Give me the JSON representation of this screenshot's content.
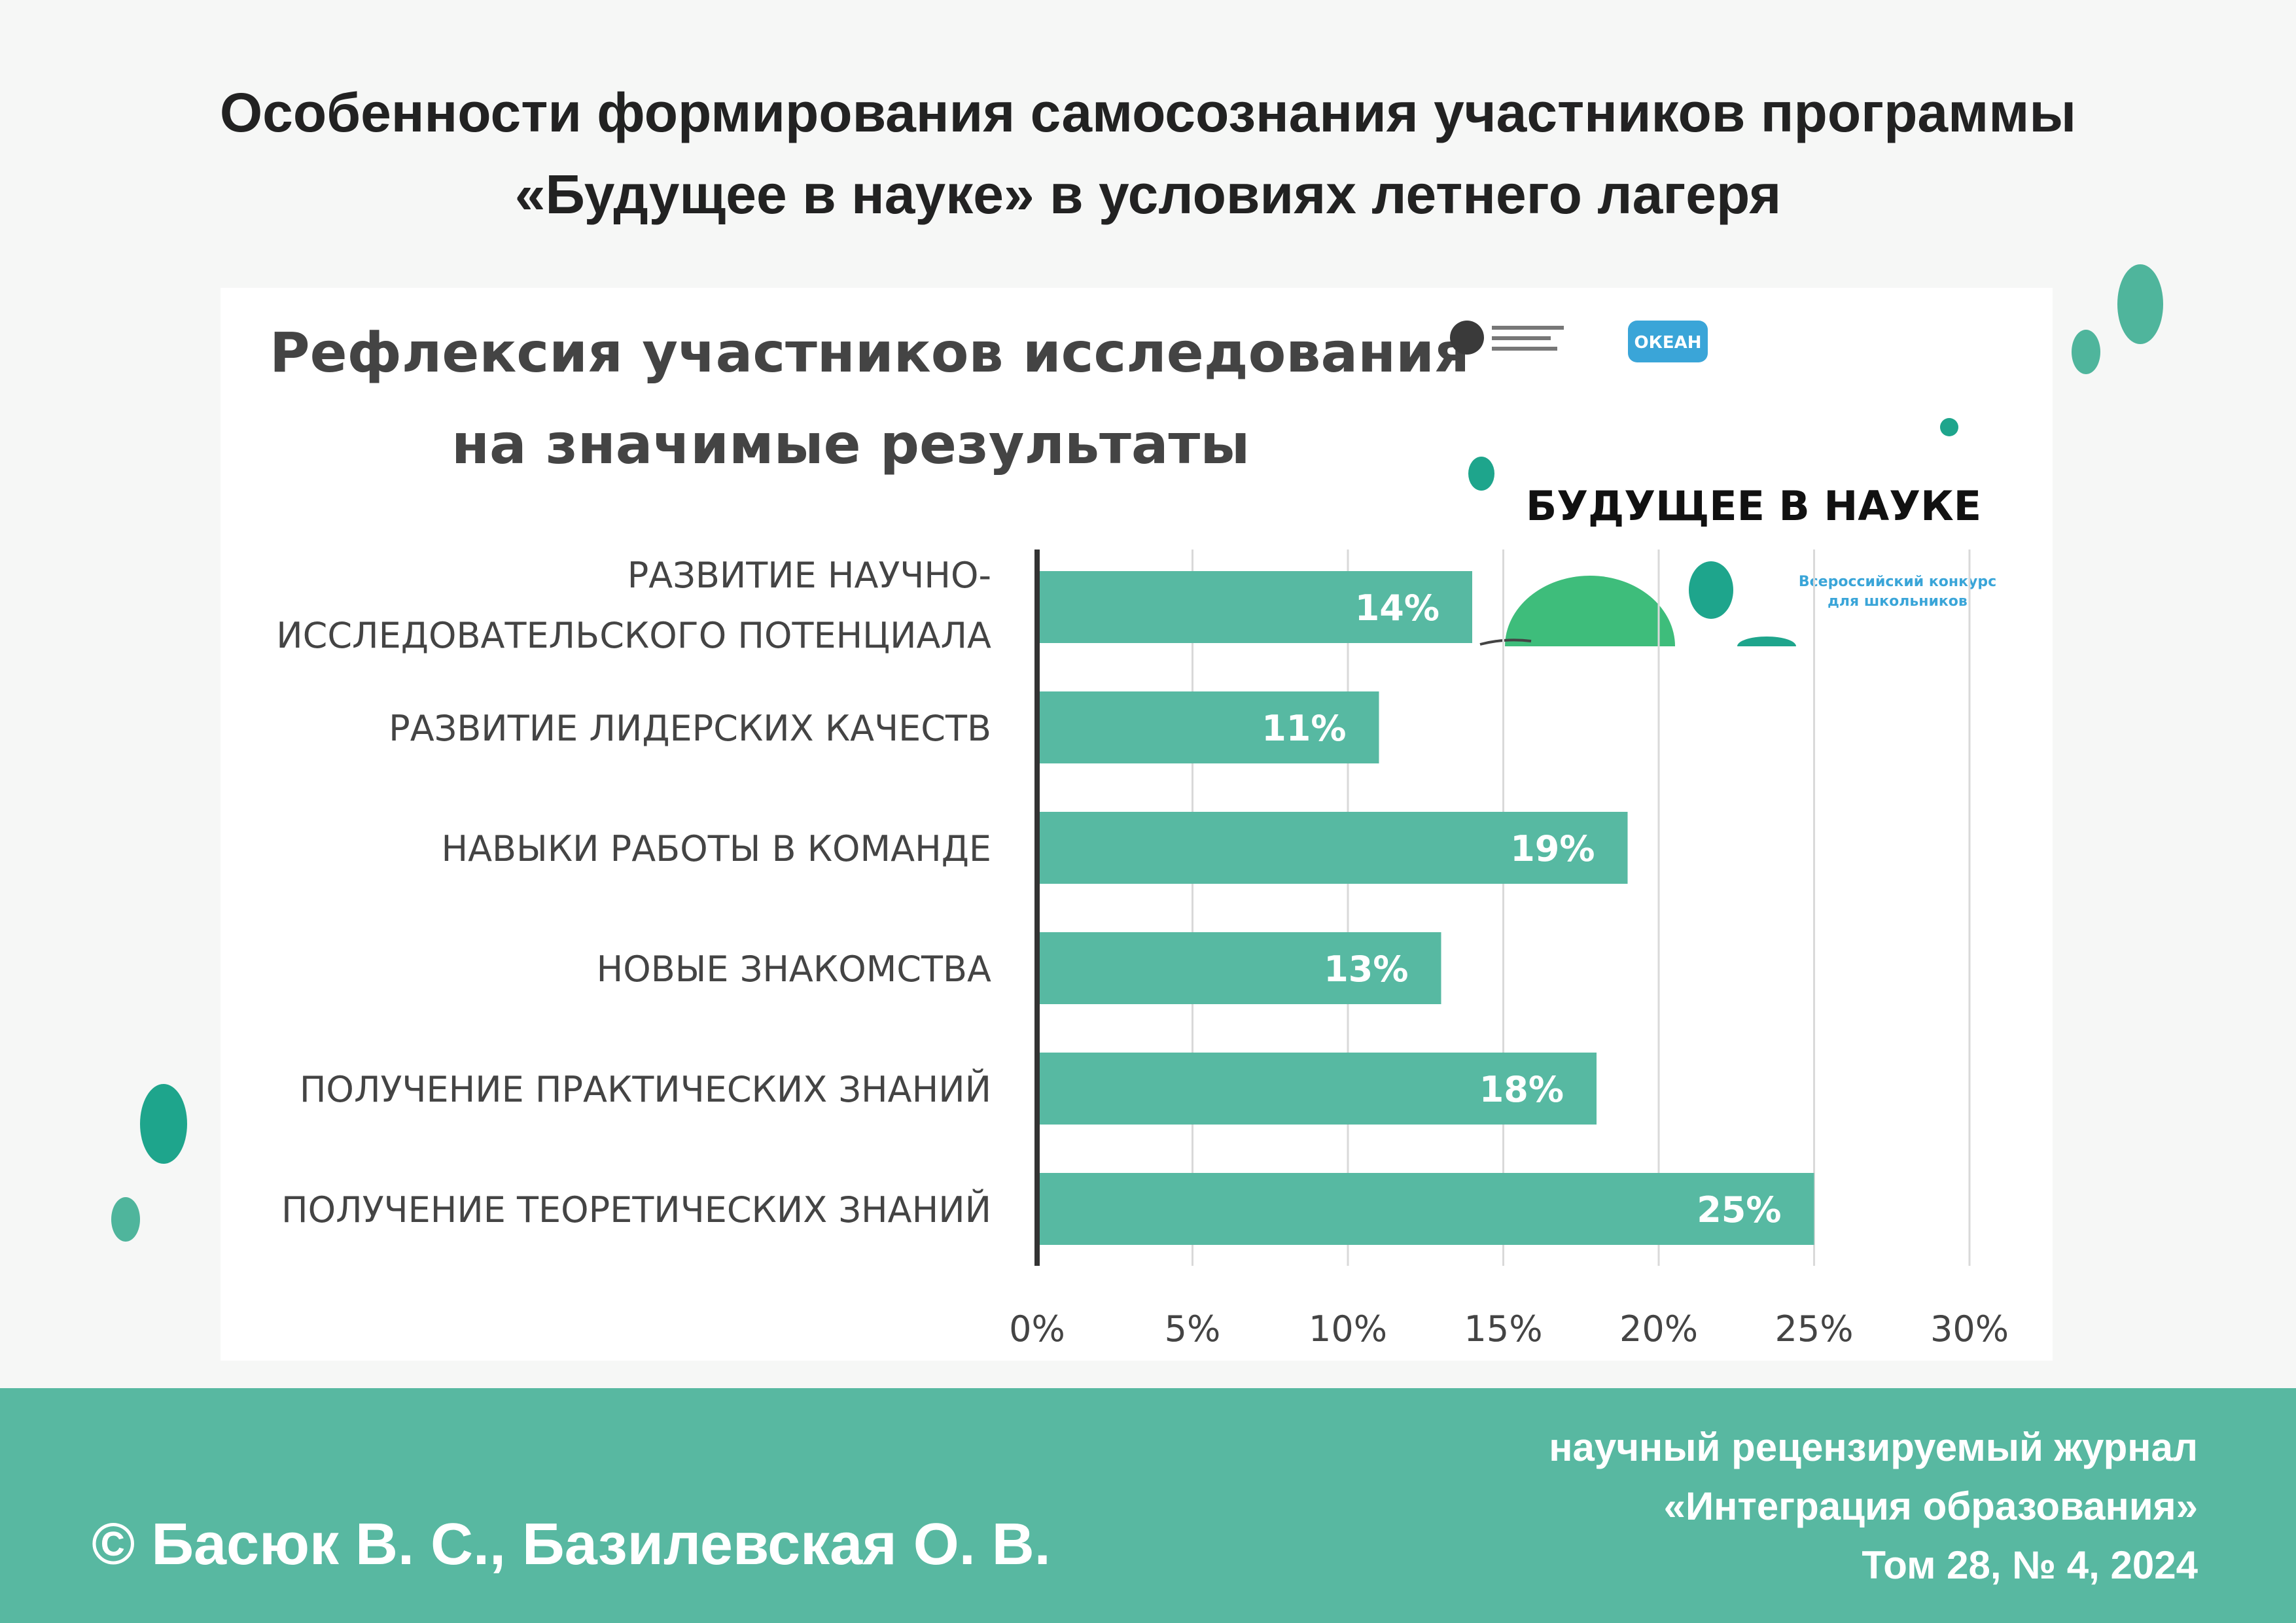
{
  "header": {
    "title_line1": "Особенности формирования самосознания участников программы",
    "title_line2": "«Будущее в науке» в условиях летнего лагеря"
  },
  "chart_data": {
    "type": "bar",
    "orientation": "horizontal",
    "title_line1": "Рефлексия участников исследования",
    "title_line2": "на значимые результаты",
    "categories": [
      [
        "РАЗВИТИЕ НАУЧНО-",
        "ИССЛЕДОВАТЕЛЬСКОГО ПОТЕНЦИАЛА"
      ],
      [
        "РАЗВИТИЕ ЛИДЕРСКИХ КАЧЕСТВ"
      ],
      [
        "НАВЫКИ РАБОТЫ В КОМАНДЕ"
      ],
      [
        "НОВЫЕ ЗНАКОМСТВА"
      ],
      [
        "ПОЛУЧЕНИЕ ПРАКТИЧЕСКИХ ЗНАНИЙ"
      ],
      [
        "ПОЛУЧЕНИЕ ТЕОРЕТИЧЕСКИХ ЗНАНИЙ"
      ]
    ],
    "values": [
      14,
      11,
      19,
      13,
      18,
      25
    ],
    "data_labels": [
      "14%",
      "11%",
      "19%",
      "13%",
      "18%",
      "25%"
    ],
    "xlim": [
      0,
      30
    ],
    "x_ticks": [
      0,
      5,
      10,
      15,
      20,
      25,
      30
    ],
    "x_tick_labels": [
      "0%",
      "5%",
      "10%",
      "15%",
      "20%",
      "25%",
      "30%"
    ],
    "grid": true,
    "bar_color": "#57b9a2"
  },
  "logos": {
    "brand_text": "БУДУЩЕЕ В НАУКЕ",
    "contest_line1": "Всероссийский конкурс",
    "contest_line2": "для школьников",
    "ocean_text": "ОКЕАН"
  },
  "footer": {
    "authors": "© Басюк В. С., Базилевская О. В.",
    "journal_line1": "научный рецензируемый журнал",
    "journal_line2": "«Интеграция образования»",
    "journal_line3": "Том 28, № 4, 2024"
  },
  "colors": {
    "accent": "#57b9a2",
    "accent_dark": "#1ea58c",
    "title_text": "#222222",
    "chart_text": "#444444"
  }
}
